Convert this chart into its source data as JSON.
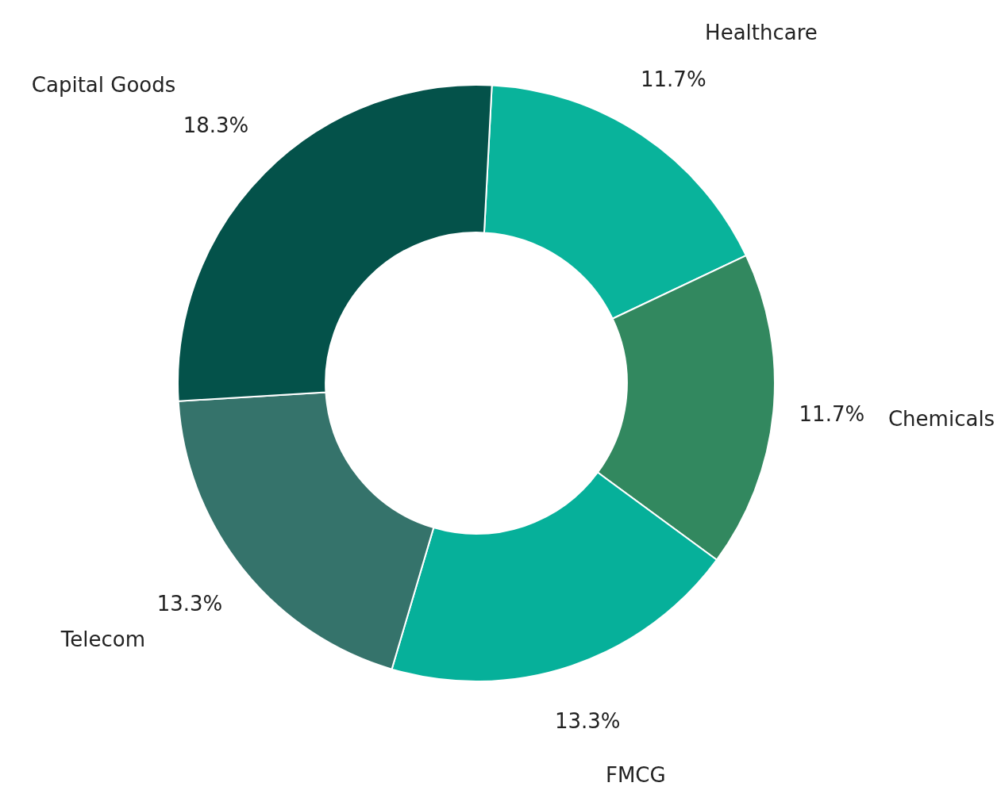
{
  "chart_data": {
    "type": "donut",
    "categories": [
      "Healthcare",
      "Chemicals",
      "FMCG",
      "Telecom",
      "Capital Goods"
    ],
    "values": [
      11.7,
      11.7,
      13.3,
      13.3,
      18.3
    ],
    "value_labels": [
      "11.7%",
      "11.7%",
      "13.3%",
      "13.3%",
      "18.3%"
    ],
    "colors": [
      "#09b39b",
      "#32885f",
      "#06b09a",
      "#35736b",
      "#04524a"
    ]
  }
}
